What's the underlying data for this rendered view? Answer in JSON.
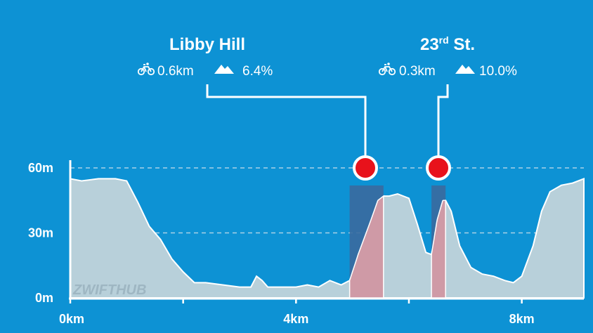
{
  "watermark": {
    "part1": "ZWIFT",
    "part2": "HUB"
  },
  "colors": {
    "background": "#0d92d4",
    "profile_fill": "#b8d0da",
    "climb_fill": "#cf9aa6",
    "climb_band": "#3a6a9f",
    "marker": "#e8121b",
    "grid": "#c5dcea",
    "text": "#ffffff"
  },
  "climbs": [
    {
      "name_main": "Libby Hill",
      "name_sup": "",
      "name_rest": "",
      "distance": "0.6km",
      "grade": "6.4%",
      "start_km": 4.95,
      "end_km": 5.55,
      "bike_icon": "bike-icon",
      "mountain_icon": "mountain-icon"
    },
    {
      "name_main": "23",
      "name_sup": "rd",
      "name_rest": " St.",
      "distance": "0.3km",
      "grade": "10.0%",
      "start_km": 6.4,
      "end_km": 6.65,
      "bike_icon": "bike-icon",
      "mountain_icon": "mountain-icon"
    }
  ],
  "chart_data": {
    "type": "area",
    "title": "",
    "xlabel": "",
    "ylabel": "",
    "xlim": [
      0,
      9.1
    ],
    "ylim": [
      0,
      60
    ],
    "grid": true,
    "x_ticks": [
      {
        "value": 0,
        "label": "0km"
      },
      {
        "value": 4,
        "label": "4km"
      },
      {
        "value": 8,
        "label": "8km"
      }
    ],
    "x_minor_ticks": [
      2,
      6
    ],
    "y_ticks": [
      {
        "value": 0,
        "label": "0m"
      },
      {
        "value": 30,
        "label": "30m"
      },
      {
        "value": 60,
        "label": "60m"
      }
    ],
    "series": [
      {
        "x": [
          0,
          0.2,
          0.5,
          0.8,
          1.0,
          1.2,
          1.4,
          1.6,
          1.8,
          2.0,
          2.2,
          2.4,
          2.7,
          3.0,
          3.2,
          3.3,
          3.4,
          3.5,
          3.7,
          4.0,
          4.2,
          4.4,
          4.6,
          4.8,
          4.95,
          5.1,
          5.3,
          5.45,
          5.55,
          5.65,
          5.8,
          6.0,
          6.15,
          6.3,
          6.4,
          6.5,
          6.6,
          6.65,
          6.75,
          6.9,
          7.1,
          7.3,
          7.5,
          7.7,
          7.85,
          8.0,
          8.2,
          8.35,
          8.5,
          8.7,
          8.9,
          9.1
        ],
        "y": [
          55,
          54,
          55,
          55,
          54,
          44,
          33,
          27,
          18,
          12,
          7,
          7,
          6,
          5,
          5,
          10,
          8,
          5,
          5,
          5,
          6,
          5,
          8,
          6,
          8,
          20,
          34,
          45,
          47,
          47,
          48,
          46,
          34,
          21,
          20,
          36,
          45,
          45,
          40,
          24,
          14,
          11,
          10,
          8,
          7,
          10,
          24,
          40,
          49,
          52,
          53,
          55
        ]
      }
    ],
    "climb_markers_y": 60
  }
}
